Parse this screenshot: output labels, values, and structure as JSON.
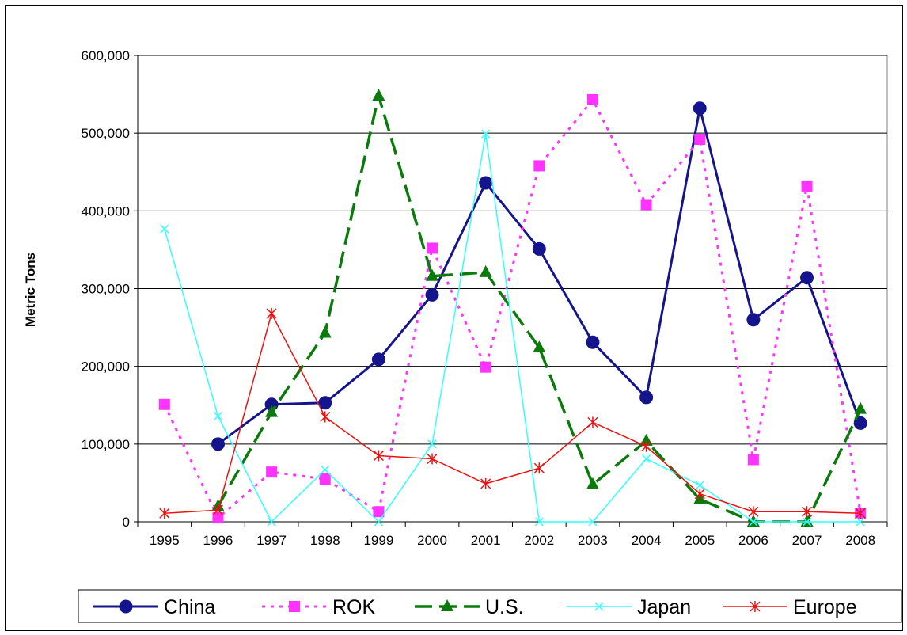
{
  "chart_data": {
    "type": "line",
    "title": "",
    "xlabel": "",
    "ylabel": "Metric Tons",
    "categories": [
      "1995",
      "1996",
      "1997",
      "1998",
      "1999",
      "2000",
      "2001",
      "2002",
      "2003",
      "2004",
      "2005",
      "2006",
      "2007",
      "2008"
    ],
    "ylim": [
      0,
      600000
    ],
    "yticks": [
      0,
      100000,
      200000,
      300000,
      400000,
      500000,
      600000
    ],
    "ytick_labels": [
      "0",
      "100,000",
      "200,000",
      "300,000",
      "400,000",
      "500,000",
      "600,000"
    ],
    "grid": true,
    "legend_position": "bottom",
    "series": [
      {
        "name": "China",
        "color": "#14148c",
        "marker": "circle",
        "dash": "solid",
        "values": [
          null,
          100000,
          151000,
          153000,
          209000,
          292000,
          436000,
          351000,
          231000,
          160000,
          532000,
          260000,
          314000,
          127000
        ]
      },
      {
        "name": "ROK",
        "color": "#ff33ff",
        "marker": "square",
        "dash": "dotted",
        "values": [
          151000,
          5000,
          64000,
          55000,
          13000,
          352000,
          199000,
          458000,
          543000,
          408000,
          492000,
          80000,
          432000,
          11000
        ]
      },
      {
        "name": "U.S.",
        "color": "#0a7a0a",
        "marker": "triangle",
        "dash": "dashed",
        "values": [
          null,
          20000,
          141000,
          243000,
          548000,
          316000,
          321000,
          224000,
          48000,
          104000,
          29000,
          0,
          0,
          145000
        ]
      },
      {
        "name": "Japan",
        "color": "#33ffff",
        "marker": "x",
        "dash": "solid",
        "values": [
          377000,
          136000,
          0,
          67000,
          0,
          100000,
          499000,
          0,
          0,
          81000,
          47000,
          0,
          0,
          0
        ]
      },
      {
        "name": "Europe",
        "color": "#ee1111",
        "marker": "star",
        "dash": "solid",
        "values": [
          11000,
          15000,
          268000,
          135000,
          85000,
          81000,
          49000,
          69000,
          128000,
          97000,
          36000,
          13000,
          13000,
          11000
        ]
      }
    ]
  }
}
